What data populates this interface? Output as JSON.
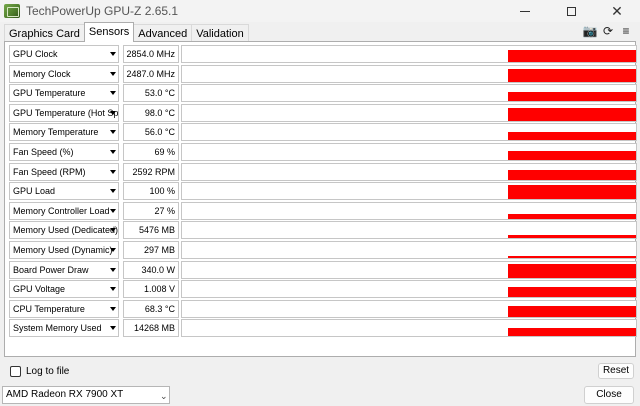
{
  "window": {
    "title": "TechPowerUp GPU-Z 2.65.1",
    "min_glyph": "",
    "close_glyph": "✕"
  },
  "tabs": [
    {
      "label": "Graphics Card"
    },
    {
      "label": "Sensors",
      "active": true
    },
    {
      "label": "Advanced"
    },
    {
      "label": "Validation"
    }
  ],
  "toolbar_icons": [
    {
      "icon": "camera-icon",
      "glyph": "📷"
    },
    {
      "icon": "refresh-icon",
      "glyph": "⟳"
    },
    {
      "icon": "menu-icon",
      "glyph": "≡"
    }
  ],
  "accent_color": "#ff0000",
  "sensors": [
    {
      "name": "GPU Clock",
      "value": "2854.0 MHz",
      "graph_level": 0.75
    },
    {
      "name": "Memory Clock",
      "value": "2487.0 MHz",
      "graph_level": 0.8
    },
    {
      "name": "GPU Temperature",
      "value": "53.0 °C",
      "graph_level": 0.55
    },
    {
      "name": "GPU Temperature (Hot Spot)",
      "value": "98.0 °C",
      "graph_level": 0.8
    },
    {
      "name": "Memory Temperature",
      "value": "56.0 °C",
      "graph_level": 0.5
    },
    {
      "name": "Fan Speed (%)",
      "value": "69 %",
      "graph_level": 0.55
    },
    {
      "name": "Fan Speed (RPM)",
      "value": "2592 RPM",
      "graph_level": 0.65
    },
    {
      "name": "GPU Load",
      "value": "100 %",
      "graph_level": 0.9
    },
    {
      "name": "Memory Controller Load",
      "value": "27 %",
      "graph_level": 0.3
    },
    {
      "name": "Memory Used (Dedicated)",
      "value": "5476 MB",
      "graph_level": 0.2
    },
    {
      "name": "Memory Used (Dynamic)",
      "value": "297 MB",
      "graph_level": 0.05
    },
    {
      "name": "Board Power Draw",
      "value": "340.0 W",
      "graph_level": 0.85
    },
    {
      "name": "GPU Voltage",
      "value": "1.008 V",
      "graph_level": 0.6
    },
    {
      "name": "CPU Temperature",
      "value": "68.3 °C",
      "graph_level": 0.7
    },
    {
      "name": "System Memory Used",
      "value": "14268 MB",
      "graph_level": 0.5
    }
  ],
  "log_to_file": {
    "label": "Log to file",
    "checked": false
  },
  "buttons": {
    "reset": "Reset",
    "close": "Close"
  },
  "gpu_select": {
    "value": "AMD Radeon RX 7900 XT"
  }
}
